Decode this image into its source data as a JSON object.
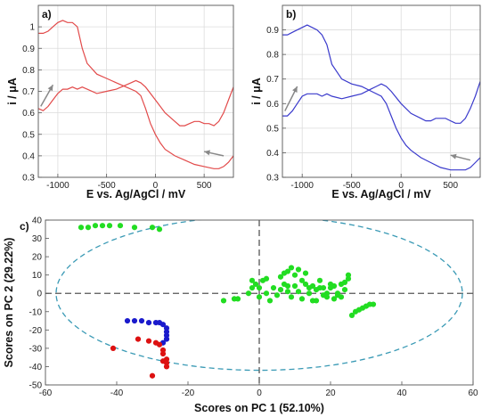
{
  "chart_data": [
    {
      "type": "line",
      "panel": "a)",
      "xlabel": "E vs. Ag/AgCl / mV",
      "ylabel": "i / μA",
      "xlim": [
        -1200,
        800
      ],
      "ylim": [
        0.3,
        1.1
      ],
      "xticks": [
        "-1000",
        "-500",
        "0",
        "500"
      ],
      "yticks": [
        "0.3",
        "0.4",
        "0.5",
        "0.6",
        "0.7",
        "0.8",
        "0.9",
        "1"
      ],
      "grid": true,
      "color": "#e24a4a",
      "series": [
        {
          "values": [
            [
              -1200,
              0.97
            ],
            [
              -1150,
              0.97
            ],
            [
              -1100,
              0.98
            ],
            [
              -1050,
              1.0
            ],
            [
              -1000,
              1.02
            ],
            [
              -950,
              1.03
            ],
            [
              -900,
              1.02
            ],
            [
              -850,
              1.02
            ],
            [
              -800,
              1.0
            ],
            [
              -750,
              0.9
            ],
            [
              -700,
              0.83
            ],
            [
              -600,
              0.78
            ],
            [
              -500,
              0.76
            ],
            [
              -400,
              0.74
            ],
            [
              -300,
              0.72
            ],
            [
              -200,
              0.7
            ],
            [
              -150,
              0.68
            ],
            [
              -100,
              0.62
            ],
            [
              -50,
              0.55
            ],
            [
              0,
              0.5
            ],
            [
              50,
              0.46
            ],
            [
              100,
              0.43
            ],
            [
              200,
              0.4
            ],
            [
              300,
              0.38
            ],
            [
              400,
              0.36
            ],
            [
              500,
              0.35
            ],
            [
              600,
              0.34
            ],
            [
              650,
              0.34
            ],
            [
              700,
              0.35
            ],
            [
              750,
              0.37
            ],
            [
              800,
              0.4
            ]
          ]
        },
        {
          "values": [
            [
              -1200,
              0.62
            ],
            [
              -1150,
              0.61
            ],
            [
              -1100,
              0.63
            ],
            [
              -1050,
              0.66
            ],
            [
              -1000,
              0.69
            ],
            [
              -950,
              0.71
            ],
            [
              -900,
              0.71
            ],
            [
              -850,
              0.72
            ],
            [
              -800,
              0.71
            ],
            [
              -750,
              0.72
            ],
            [
              -700,
              0.71
            ],
            [
              -600,
              0.69
            ],
            [
              -500,
              0.7
            ],
            [
              -400,
              0.71
            ],
            [
              -300,
              0.73
            ],
            [
              -250,
              0.74
            ],
            [
              -200,
              0.75
            ],
            [
              -150,
              0.74
            ],
            [
              -100,
              0.72
            ],
            [
              0,
              0.66
            ],
            [
              100,
              0.6
            ],
            [
              200,
              0.56
            ],
            [
              250,
              0.54
            ],
            [
              300,
              0.54
            ],
            [
              350,
              0.55
            ],
            [
              400,
              0.56
            ],
            [
              450,
              0.56
            ],
            [
              500,
              0.55
            ],
            [
              550,
              0.55
            ],
            [
              600,
              0.54
            ],
            [
              650,
              0.56
            ],
            [
              700,
              0.6
            ],
            [
              750,
              0.66
            ],
            [
              800,
              0.72
            ]
          ]
        }
      ]
    },
    {
      "type": "line",
      "panel": "b)",
      "xlabel": "E vs. Ag/AgCl / mV",
      "ylabel": "i / μA",
      "xlim": [
        -1200,
        800
      ],
      "ylim": [
        0.3,
        1.0
      ],
      "xticks": [
        "-1000",
        "-500",
        "0",
        "500"
      ],
      "yticks": [
        "0.3",
        "0.4",
        "0.5",
        "0.6",
        "0.7",
        "0.8",
        "0.9"
      ],
      "grid": true,
      "color": "#3a3acc",
      "series": [
        {
          "values": [
            [
              -1200,
              0.88
            ],
            [
              -1150,
              0.88
            ],
            [
              -1100,
              0.89
            ],
            [
              -1050,
              0.9
            ],
            [
              -1000,
              0.91
            ],
            [
              -950,
              0.92
            ],
            [
              -900,
              0.91
            ],
            [
              -850,
              0.9
            ],
            [
              -800,
              0.88
            ],
            [
              -750,
              0.84
            ],
            [
              -700,
              0.76
            ],
            [
              -600,
              0.7
            ],
            [
              -500,
              0.68
            ],
            [
              -400,
              0.67
            ],
            [
              -300,
              0.65
            ],
            [
              -200,
              0.63
            ],
            [
              -150,
              0.6
            ],
            [
              -100,
              0.55
            ],
            [
              -50,
              0.5
            ],
            [
              0,
              0.46
            ],
            [
              50,
              0.43
            ],
            [
              100,
              0.41
            ],
            [
              200,
              0.38
            ],
            [
              300,
              0.36
            ],
            [
              400,
              0.34
            ],
            [
              500,
              0.33
            ],
            [
              600,
              0.33
            ],
            [
              650,
              0.33
            ],
            [
              700,
              0.34
            ],
            [
              750,
              0.36
            ],
            [
              800,
              0.38
            ]
          ]
        },
        {
          "values": [
            [
              -1200,
              0.55
            ],
            [
              -1150,
              0.55
            ],
            [
              -1100,
              0.57
            ],
            [
              -1050,
              0.6
            ],
            [
              -1000,
              0.63
            ],
            [
              -950,
              0.64
            ],
            [
              -900,
              0.64
            ],
            [
              -850,
              0.64
            ],
            [
              -800,
              0.63
            ],
            [
              -750,
              0.64
            ],
            [
              -700,
              0.63
            ],
            [
              -600,
              0.62
            ],
            [
              -500,
              0.63
            ],
            [
              -400,
              0.64
            ],
            [
              -300,
              0.66
            ],
            [
              -250,
              0.67
            ],
            [
              -200,
              0.68
            ],
            [
              -150,
              0.67
            ],
            [
              -100,
              0.65
            ],
            [
              0,
              0.6
            ],
            [
              100,
              0.56
            ],
            [
              200,
              0.54
            ],
            [
              250,
              0.53
            ],
            [
              300,
              0.53
            ],
            [
              350,
              0.54
            ],
            [
              400,
              0.54
            ],
            [
              450,
              0.54
            ],
            [
              500,
              0.53
            ],
            [
              550,
              0.52
            ],
            [
              600,
              0.52
            ],
            [
              650,
              0.54
            ],
            [
              700,
              0.58
            ],
            [
              750,
              0.63
            ],
            [
              800,
              0.69
            ]
          ]
        }
      ]
    },
    {
      "type": "scatter",
      "panel": "c)",
      "xlabel": "Scores on PC 1 (52.10%)",
      "ylabel": "Scores on PC 2 (29.22%)",
      "xlim": [
        -60,
        60
      ],
      "ylim": [
        -50,
        40
      ],
      "xticks": [
        "-60",
        "-40",
        "-20",
        "0",
        "20",
        "40",
        "60"
      ],
      "yticks": [
        "-50",
        "-40",
        "-30",
        "-20",
        "-10",
        "0",
        "10",
        "20",
        "30",
        "40"
      ],
      "grid": false,
      "ellipse": {
        "cx": 0,
        "cy": 0,
        "rx": 57,
        "ry": 42,
        "color": "#3a9ab5"
      },
      "series": [
        {
          "color": "#22dd22",
          "points": [
            [
              -50,
              36
            ],
            [
              -48,
              36
            ],
            [
              -46,
              37
            ],
            [
              -44,
              37
            ],
            [
              -42,
              37
            ],
            [
              -39,
              37
            ],
            [
              -35,
              36
            ],
            [
              -30,
              36
            ],
            [
              -28,
              35
            ],
            [
              -10,
              -4
            ],
            [
              -7,
              -3
            ],
            [
              -6,
              -3
            ],
            [
              -3,
              0
            ],
            [
              -2,
              3
            ],
            [
              -2,
              7
            ],
            [
              -1,
              5
            ],
            [
              0,
              3
            ],
            [
              0,
              -2
            ],
            [
              1,
              7
            ],
            [
              2,
              8
            ],
            [
              2,
              0
            ],
            [
              3,
              -4
            ],
            [
              4,
              3
            ],
            [
              5,
              -1
            ],
            [
              6,
              2
            ],
            [
              6,
              9
            ],
            [
              7,
              5
            ],
            [
              7,
              11
            ],
            [
              8,
              1
            ],
            [
              8,
              4
            ],
            [
              8,
              12
            ],
            [
              9,
              14
            ],
            [
              9,
              -2
            ],
            [
              10,
              4
            ],
            [
              10,
              10
            ],
            [
              11,
              13
            ],
            [
              11,
              1
            ],
            [
              12,
              -3
            ],
            [
              12,
              7
            ],
            [
              13,
              5
            ],
            [
              13,
              11
            ],
            [
              14,
              3
            ],
            [
              14,
              0
            ],
            [
              15,
              -4
            ],
            [
              15,
              4
            ],
            [
              16,
              2
            ],
            [
              16,
              -4
            ],
            [
              17,
              7
            ],
            [
              17,
              3
            ],
            [
              18,
              3
            ],
            [
              18,
              -1
            ],
            [
              19,
              0
            ],
            [
              19,
              -2
            ],
            [
              20,
              5
            ],
            [
              20,
              3
            ],
            [
              21,
              4
            ],
            [
              21,
              -3
            ],
            [
              22,
              -1
            ],
            [
              22,
              0
            ],
            [
              23,
              5
            ],
            [
              23,
              -2
            ],
            [
              24,
              6
            ],
            [
              24,
              2
            ],
            [
              25,
              8
            ],
            [
              25,
              10
            ],
            [
              26,
              -12
            ],
            [
              27,
              -10
            ],
            [
              28,
              -9
            ],
            [
              29,
              -8
            ],
            [
              30,
              -7
            ],
            [
              31,
              -6
            ],
            [
              32,
              -6
            ]
          ]
        },
        {
          "color": "#1a1acc",
          "points": [
            [
              -37,
              -15
            ],
            [
              -35,
              -15
            ],
            [
              -33,
              -15
            ],
            [
              -31,
              -16
            ],
            [
              -29,
              -16
            ],
            [
              -28,
              -16
            ],
            [
              -27,
              -17
            ],
            [
              -26,
              -19
            ],
            [
              -26,
              -21
            ],
            [
              -26,
              -23
            ],
            [
              -26,
              -25
            ],
            [
              -27,
              -27
            ]
          ]
        },
        {
          "color": "#dd1111",
          "points": [
            [
              -41,
              -30
            ],
            [
              -34,
              -25
            ],
            [
              -31,
              -26
            ],
            [
              -29,
              -27
            ],
            [
              -28,
              -28
            ],
            [
              -27,
              -31
            ],
            [
              -27,
              -33
            ],
            [
              -26,
              -36
            ],
            [
              -27,
              -37
            ],
            [
              -26,
              -38
            ],
            [
              -26,
              -40
            ],
            [
              -30,
              -45
            ]
          ]
        }
      ]
    }
  ]
}
